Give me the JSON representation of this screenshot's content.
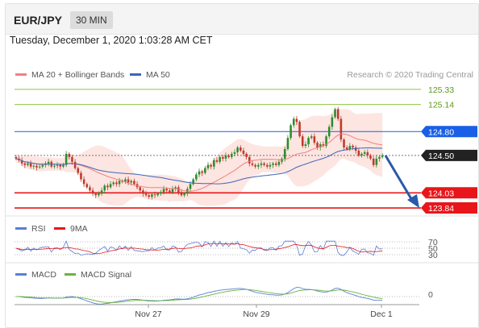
{
  "header": {
    "symbol": "EUR/JPY",
    "interval": "30 MIN"
  },
  "datetime": "Tuesday, December 1, 2020 1:03:28 AM CET",
  "copyright": "Research © 2020 Trading Central",
  "colors": {
    "ma20": "#f08080",
    "ma50": "#3a66b8",
    "bollinger_fill": "#fde0dc",
    "bull": "#2e8b2e",
    "bear": "#c0392b",
    "resistance_green": "#8cc63f",
    "pivot_blue": "#1a5fe6",
    "support_red": "#e8161a",
    "current_price": "#222222",
    "forecast_arrow": "#2a5aa8",
    "rsi": "#5b7fd6",
    "rsi_9ma": "#e8161a",
    "macd": "#5b7fd6",
    "macd_signal": "#6ab43e"
  },
  "chart_data": [
    {
      "type": "candlestick",
      "name": "price",
      "legend": [
        {
          "key": "ma20",
          "label": "MA 20 + Bollinger Bands"
        },
        {
          "key": "ma50",
          "label": "MA 50"
        }
      ],
      "x_labels": [
        "Nov 27",
        "Nov 29",
        "Dec 1"
      ],
      "ylim": [
        123.8,
        125.4
      ],
      "levels": [
        {
          "value": 125.33,
          "label": "125.33",
          "style": "resistance"
        },
        {
          "value": 125.14,
          "label": "125.14",
          "style": "resistance"
        },
        {
          "value": 124.8,
          "label": "124.80",
          "style": "pivot"
        },
        {
          "value": 124.5,
          "label": "124.50",
          "style": "current"
        },
        {
          "value": 124.03,
          "label": "124.03",
          "style": "support"
        },
        {
          "value": 123.84,
          "label": "123.84",
          "style": "support"
        }
      ],
      "forecast": {
        "from": 124.5,
        "to": 123.84,
        "direction": "down"
      },
      "series": [
        {
          "name": "EUR/JPY",
          "close": [
            124.46,
            124.44,
            124.4,
            124.38,
            124.4,
            124.36,
            124.37,
            124.35,
            124.36,
            124.38,
            124.4,
            124.42,
            124.36,
            124.37,
            124.38,
            124.36,
            124.38,
            124.52,
            124.48,
            124.42,
            124.34,
            124.28,
            124.2,
            124.14,
            124.1,
            124.06,
            124.02,
            124.0,
            124.02,
            124.06,
            124.12,
            124.1,
            124.14,
            124.16,
            124.14,
            124.18,
            124.17,
            124.2,
            124.16,
            124.18,
            124.14,
            124.1,
            124.06,
            124.02,
            124.0,
            123.98,
            124.01,
            124.0,
            124.02,
            124.04,
            124.08,
            124.06,
            124.04,
            124.08,
            124.1,
            124.04,
            124.0,
            124.02,
            124.08,
            124.14,
            124.2,
            124.26,
            124.3,
            124.28,
            124.34,
            124.38,
            124.36,
            124.44,
            124.42,
            124.48,
            124.46,
            124.5,
            124.48,
            124.52,
            124.54,
            124.6,
            124.56,
            124.52,
            124.48,
            124.4,
            124.38,
            124.36,
            124.38,
            124.4,
            124.38,
            124.36,
            124.38,
            124.4,
            124.38,
            124.42,
            124.46,
            124.58,
            124.72,
            124.88,
            124.96,
            124.92,
            124.74,
            124.62,
            124.64,
            124.72,
            124.74,
            124.66,
            124.6,
            124.64,
            124.62,
            124.74,
            124.86,
            124.98,
            125.08,
            124.96,
            124.7,
            124.6,
            124.58,
            124.62,
            124.6,
            124.56,
            124.5,
            124.52,
            124.54,
            124.5,
            124.46,
            124.38,
            124.46,
            124.48,
            124.5
          ]
        }
      ]
    },
    {
      "type": "line",
      "name": "rsi",
      "legend": [
        {
          "key": "rsi",
          "label": "RSI"
        },
        {
          "key": "rsi_9ma",
          "label": "9MA"
        }
      ],
      "y_labels": [
        70,
        50,
        30
      ],
      "ylim": [
        20,
        80
      ]
    },
    {
      "type": "line",
      "name": "macd",
      "legend": [
        {
          "key": "macd",
          "label": "MACD"
        },
        {
          "key": "macd_signal",
          "label": "MACD Signal"
        }
      ],
      "y_labels": [
        0
      ]
    }
  ]
}
